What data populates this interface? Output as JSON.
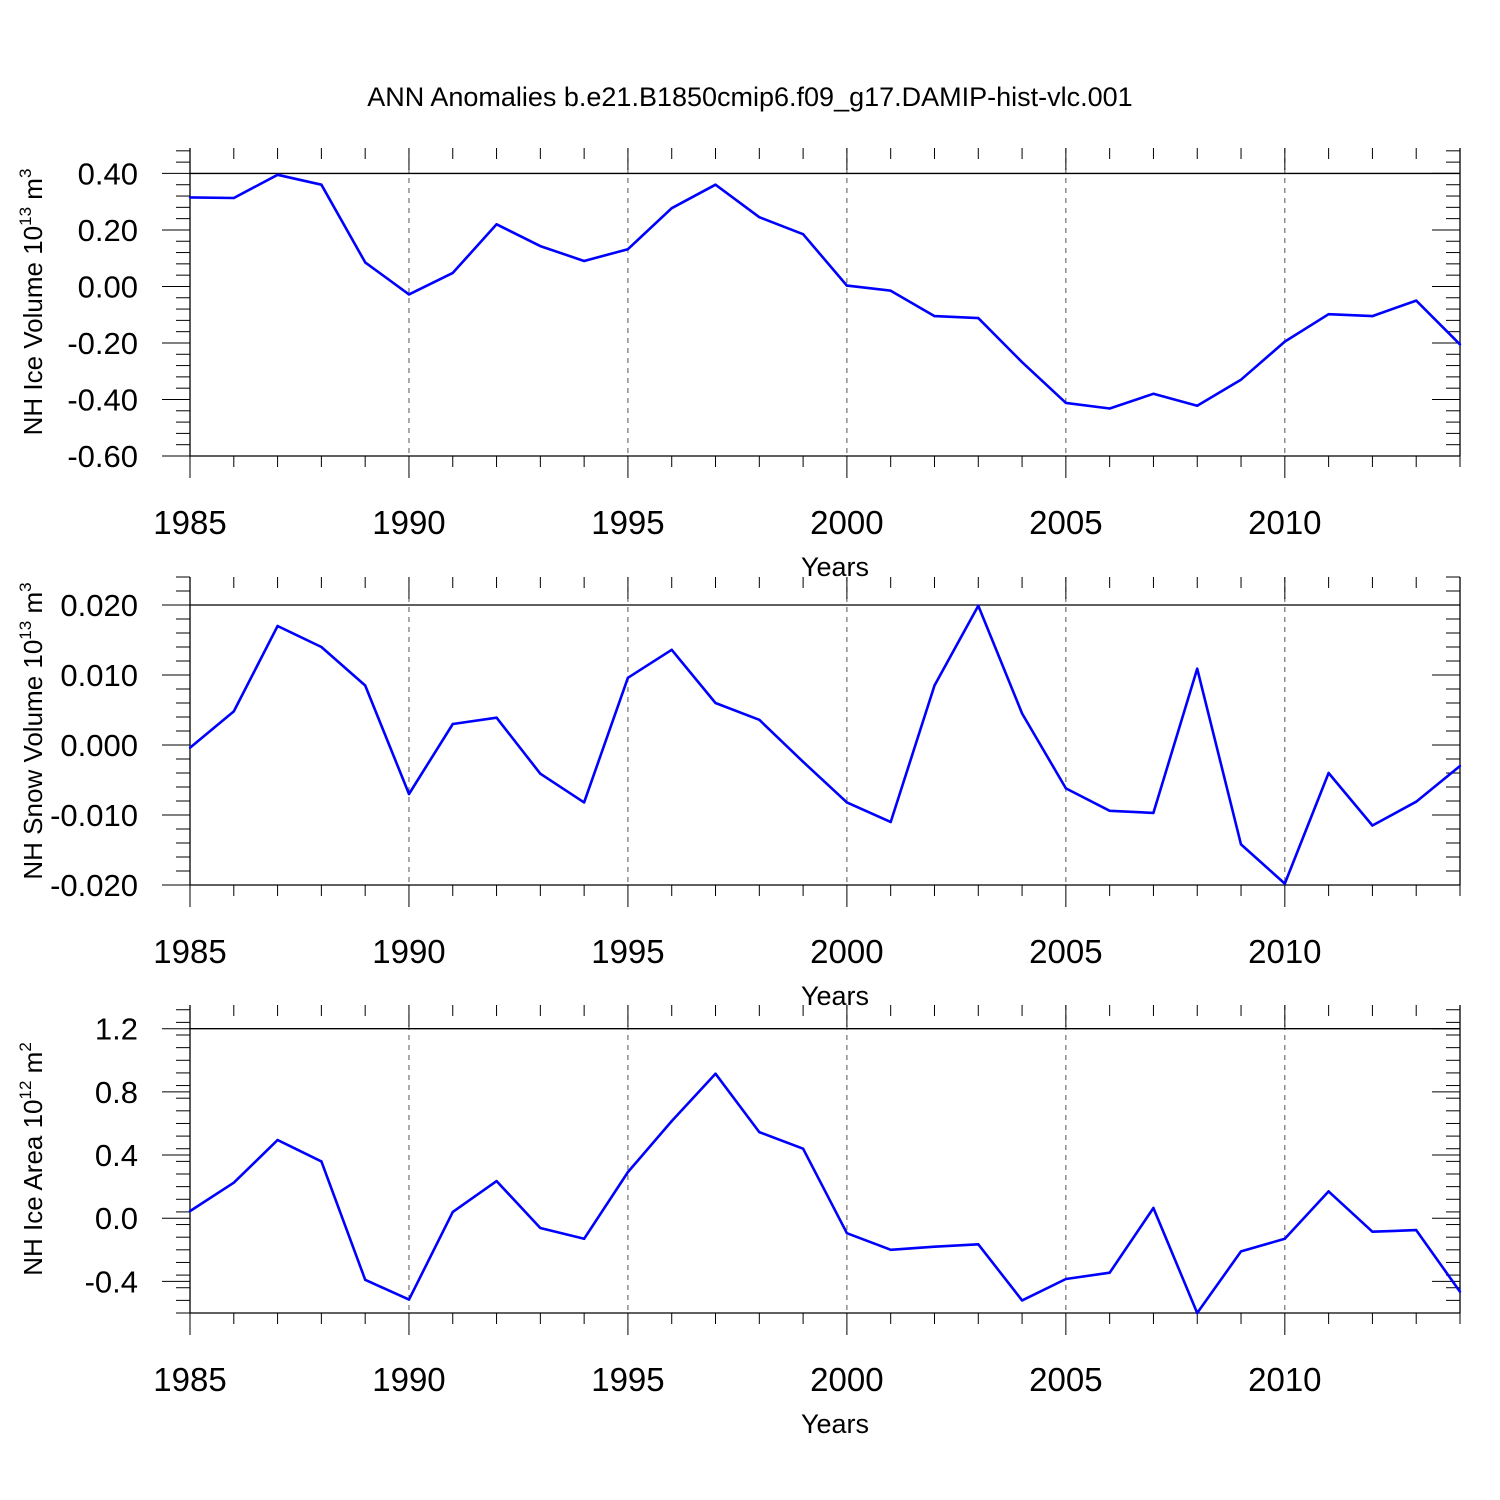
{
  "chart_data": [
    {
      "type": "line",
      "title": "ANN Anomalies b.e21.B1850cmip6.f09_g17.DAMIP-hist-vlc.001",
      "xlabel": "Years",
      "ylabel": "NH Ice Volume 10",
      "ylabel_exp": "13",
      "ylabel_unit": "m",
      "ylabel_unit_exp": "3",
      "xlim": [
        1985,
        2014
      ],
      "ylim": [
        -0.6,
        0.49
      ],
      "yticks": [
        0.4,
        0.2,
        0.0,
        -0.2,
        -0.4,
        -0.6
      ],
      "ytick_labels": [
        "0.40",
        "0.20",
        "0.00",
        "-0.20",
        "-0.40",
        "-0.60"
      ],
      "yref": 0.4,
      "xticks": [
        1985,
        1990,
        1995,
        2000,
        2005,
        2010
      ],
      "xtick_labels": [
        "1985",
        "1990",
        "1995",
        "2000",
        "2005",
        "2010"
      ],
      "line_color": "#0000ff",
      "x": [
        1985,
        1986,
        1987,
        1988,
        1989,
        1990,
        1991,
        1992,
        1993,
        1994,
        1995,
        1996,
        1997,
        1998,
        1999,
        2000,
        2001,
        2002,
        2003,
        2004,
        2005,
        2006,
        2007,
        2008,
        2009,
        2010,
        2011,
        2012,
        2013,
        2014
      ],
      "values": [
        0.315,
        0.313,
        0.395,
        0.36,
        0.085,
        -0.028,
        0.048,
        0.22,
        0.143,
        0.09,
        0.132,
        0.277,
        0.36,
        0.245,
        0.185,
        0.003,
        -0.015,
        -0.105,
        -0.112,
        -0.268,
        -0.412,
        -0.432,
        -0.38,
        -0.422,
        -0.33,
        -0.195,
        -0.098,
        -0.105,
        -0.05,
        -0.205
      ]
    },
    {
      "type": "line",
      "xlabel": "Years",
      "ylabel": "NH Snow Volume 10",
      "ylabel_exp": "13",
      "ylabel_unit": "m",
      "ylabel_unit_exp": "3",
      "xlim": [
        1985,
        2014
      ],
      "ylim": [
        -0.02,
        0.024
      ],
      "yticks": [
        0.02,
        0.01,
        0.0,
        -0.01,
        -0.02
      ],
      "ytick_labels": [
        "0.020",
        "0.010",
        "0.000",
        "-0.010",
        "-0.020"
      ],
      "yref": 0.02,
      "xticks": [
        1985,
        1990,
        1995,
        2000,
        2005,
        2010
      ],
      "xtick_labels": [
        "1985",
        "1990",
        "1995",
        "2000",
        "2005",
        "2010"
      ],
      "line_color": "#0000ff",
      "x": [
        1985,
        1986,
        1987,
        1988,
        1989,
        1990,
        1991,
        1992,
        1993,
        1994,
        1995,
        1996,
        1997,
        1998,
        1999,
        2000,
        2001,
        2002,
        2003,
        2004,
        2005,
        2006,
        2007,
        2008,
        2009,
        2010,
        2011,
        2012,
        2013,
        2014
      ],
      "values": [
        -0.0004,
        0.0048,
        0.017,
        0.014,
        0.0085,
        -0.007,
        0.003,
        0.0039,
        -0.0041,
        -0.0082,
        0.0096,
        0.0136,
        0.006,
        0.0036,
        -0.0024,
        -0.0082,
        -0.011,
        0.0085,
        0.0199,
        0.0045,
        -0.0062,
        -0.0094,
        -0.0097,
        0.0109,
        -0.0142,
        -0.0198,
        -0.004,
        -0.0115,
        -0.0081,
        -0.003
      ]
    },
    {
      "type": "line",
      "xlabel": "Years",
      "ylabel": "NH Ice Area 10",
      "ylabel_exp": "12",
      "ylabel_unit": "m",
      "ylabel_unit_exp": "2",
      "xlim": [
        1985,
        2014
      ],
      "ylim": [
        -0.6,
        1.35
      ],
      "yticks": [
        1.2,
        0.8,
        0.4,
        0.0,
        -0.4
      ],
      "ytick_labels": [
        "1.2",
        "0.8",
        "0.4",
        "0.0",
        "-0.4"
      ],
      "yref": 1.2,
      "xticks": [
        1985,
        1990,
        1995,
        2000,
        2005,
        2010
      ],
      "xtick_labels": [
        "1985",
        "1990",
        "1995",
        "2000",
        "2005",
        "2010"
      ],
      "line_color": "#0000ff",
      "x": [
        1985,
        1986,
        1987,
        1988,
        1989,
        1990,
        1991,
        1992,
        1993,
        1994,
        1995,
        1996,
        1997,
        1998,
        1999,
        2000,
        2001,
        2002,
        2003,
        2004,
        2005,
        2006,
        2007,
        2008,
        2009,
        2010,
        2011,
        2012,
        2013,
        2014
      ],
      "values": [
        0.045,
        0.225,
        0.495,
        0.36,
        -0.39,
        -0.515,
        0.04,
        0.235,
        -0.062,
        -0.13,
        0.292,
        0.615,
        0.915,
        0.545,
        0.44,
        -0.095,
        -0.2,
        -0.18,
        -0.165,
        -0.52,
        -0.385,
        -0.345,
        0.065,
        -0.6,
        -0.21,
        -0.13,
        0.17,
        -0.085,
        -0.075,
        -0.465
      ]
    }
  ]
}
